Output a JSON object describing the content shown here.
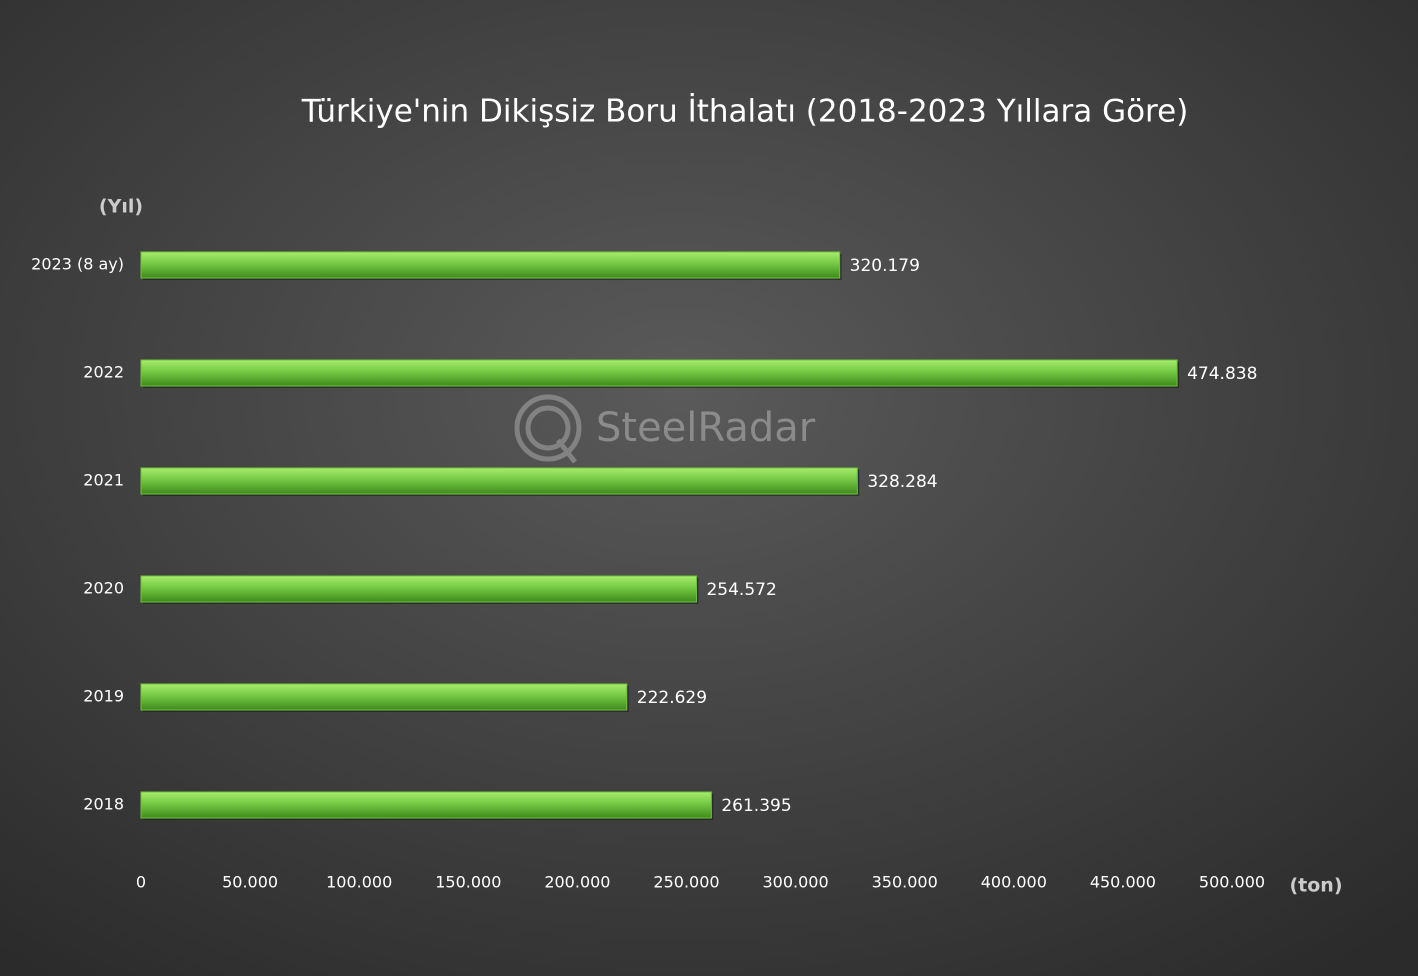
{
  "chart_data": {
    "type": "hbar",
    "title": "Türkiye'nin Dikişsiz Boru İthalatı (2018-2023 Yıllara Göre)",
    "y_axis_label": "(Yıl)",
    "x_axis_label": "(ton)",
    "watermark": "SteelRadar",
    "categories": [
      "2023 (8 ay)",
      "2022",
      "2021",
      "2020",
      "2019",
      "2018"
    ],
    "values": [
      320179,
      474838,
      328284,
      254572,
      222629,
      261395
    ],
    "value_labels": [
      "320.179",
      "474.838",
      "328.284",
      "254.572",
      "222.629",
      "261.395"
    ],
    "color": "#6ec43a",
    "xlim": [
      0,
      500000
    ],
    "xticks": [
      0,
      {
        "value": 50000,
        "label": "50.000"
      },
      {
        "value": 100000,
        "label": "100.000"
      },
      {
        "value": 150000,
        "label": "150.000"
      },
      {
        "value": 200000,
        "label": "200.000"
      },
      {
        "value": 250000,
        "label": "250.000"
      },
      {
        "value": 300000,
        "label": "300.000"
      },
      {
        "value": 350000,
        "label": "350.000"
      },
      {
        "value": 400000,
        "label": "400.000"
      },
      {
        "value": 450000,
        "label": "450.000"
      },
      {
        "value": 500000,
        "label": "500.000"
      }
    ],
    "grid": false
  }
}
